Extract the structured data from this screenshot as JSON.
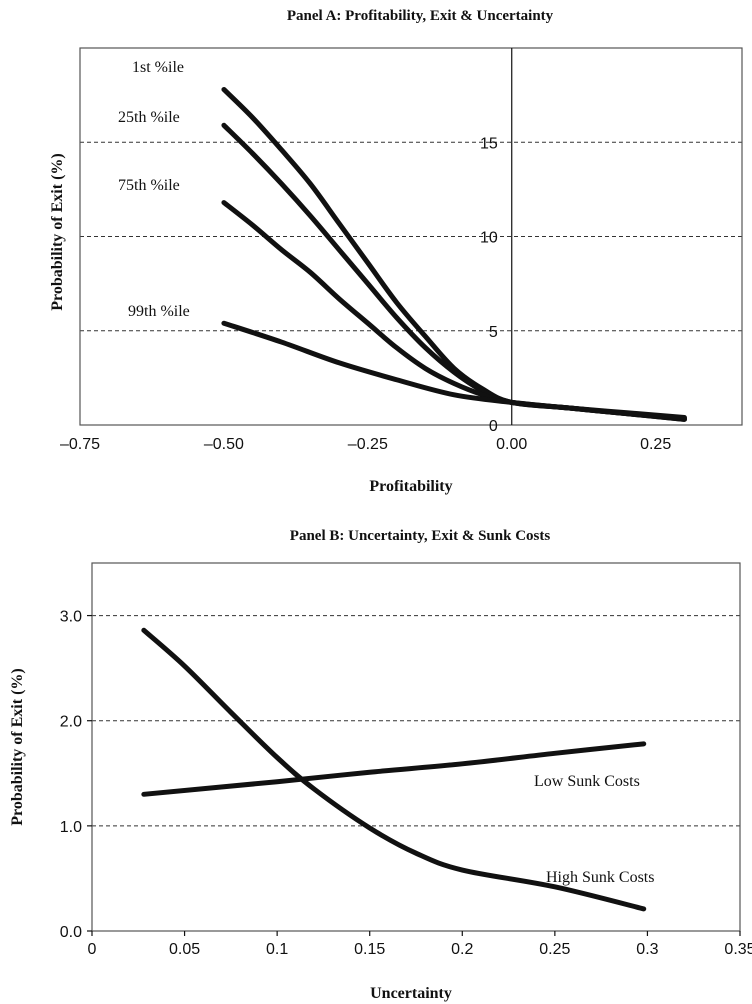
{
  "chart_data": [
    {
      "type": "line",
      "title": "Panel A:  Profitability, Exit & Uncertainty",
      "xlabel": "Profitability",
      "ylabel": "Probability of Exit (%)",
      "xlim": [
        -0.75,
        0.4
      ],
      "ylim": [
        0,
        20
      ],
      "xticks": [
        -0.75,
        -0.5,
        -0.25,
        0.0,
        0.25
      ],
      "xtick_labels": [
        "–0.75",
        "–0.50",
        "–0.25",
        "0.00",
        "0.25"
      ],
      "yticks": [
        0,
        5,
        10,
        15
      ],
      "ytick_labels": [
        "0",
        "5",
        "10",
        "15"
      ],
      "grid": "horizontal-dashed",
      "y_axis_at_x": 0,
      "series": [
        {
          "name": "1st %ile",
          "x": [
            -0.5,
            -0.45,
            -0.4,
            -0.35,
            -0.3,
            -0.25,
            -0.2,
            -0.15,
            -0.1,
            -0.05,
            0.0,
            0.1,
            0.2,
            0.3
          ],
          "y": [
            17.8,
            16.3,
            14.6,
            12.8,
            10.7,
            8.6,
            6.5,
            4.7,
            3.0,
            1.9,
            1.2,
            0.9,
            0.6,
            0.3
          ]
        },
        {
          "name": "25th %ile",
          "x": [
            -0.5,
            -0.45,
            -0.4,
            -0.35,
            -0.3,
            -0.25,
            -0.2,
            -0.15,
            -0.1,
            -0.05,
            0.0,
            0.1,
            0.2,
            0.3
          ],
          "y": [
            15.9,
            14.4,
            12.8,
            11.1,
            9.3,
            7.5,
            5.7,
            4.1,
            2.8,
            1.8,
            1.2,
            0.9,
            0.6,
            0.3
          ]
        },
        {
          "name": "75th %ile",
          "x": [
            -0.5,
            -0.45,
            -0.4,
            -0.35,
            -0.3,
            -0.25,
            -0.2,
            -0.15,
            -0.1,
            -0.05,
            0.0,
            0.1,
            0.2,
            0.3
          ],
          "y": [
            11.8,
            10.6,
            9.3,
            8.1,
            6.7,
            5.4,
            4.1,
            3.0,
            2.2,
            1.6,
            1.2,
            0.9,
            0.6,
            0.35
          ]
        },
        {
          "name": "99th %ile",
          "x": [
            -0.5,
            -0.4,
            -0.3,
            -0.2,
            -0.1,
            0.0,
            0.1,
            0.2,
            0.3
          ],
          "y": [
            5.4,
            4.4,
            3.3,
            2.4,
            1.6,
            1.2,
            0.9,
            0.65,
            0.4
          ]
        }
      ]
    },
    {
      "type": "line",
      "title": "Panel B:  Uncertainty, Exit & Sunk Costs",
      "xlabel": "Uncertainty",
      "ylabel": "Probability of Exit (%)",
      "xlim": [
        0,
        0.35
      ],
      "ylim": [
        0,
        3.5
      ],
      "xticks": [
        0,
        0.05,
        0.1,
        0.15,
        0.2,
        0.25,
        0.3,
        0.35
      ],
      "xtick_labels": [
        "0",
        "0.05",
        "0.1",
        "0.15",
        "0.2",
        "0.25",
        "0.3",
        "0.35"
      ],
      "yticks": [
        0,
        1,
        2,
        3
      ],
      "ytick_labels": [
        "0.0",
        "1.0",
        "2.0",
        "3.0"
      ],
      "grid": "horizontal-dashed",
      "series": [
        {
          "name": "Low Sunk Costs",
          "x": [
            0.028,
            0.1,
            0.15,
            0.2,
            0.25,
            0.298
          ],
          "y": [
            1.3,
            1.42,
            1.51,
            1.59,
            1.69,
            1.78
          ]
        },
        {
          "name": "High Sunk Costs",
          "x": [
            0.028,
            0.05,
            0.075,
            0.1,
            0.12,
            0.15,
            0.175,
            0.2,
            0.25,
            0.298
          ],
          "y": [
            2.86,
            2.52,
            2.08,
            1.65,
            1.35,
            0.98,
            0.74,
            0.58,
            0.42,
            0.21
          ]
        }
      ]
    }
  ]
}
